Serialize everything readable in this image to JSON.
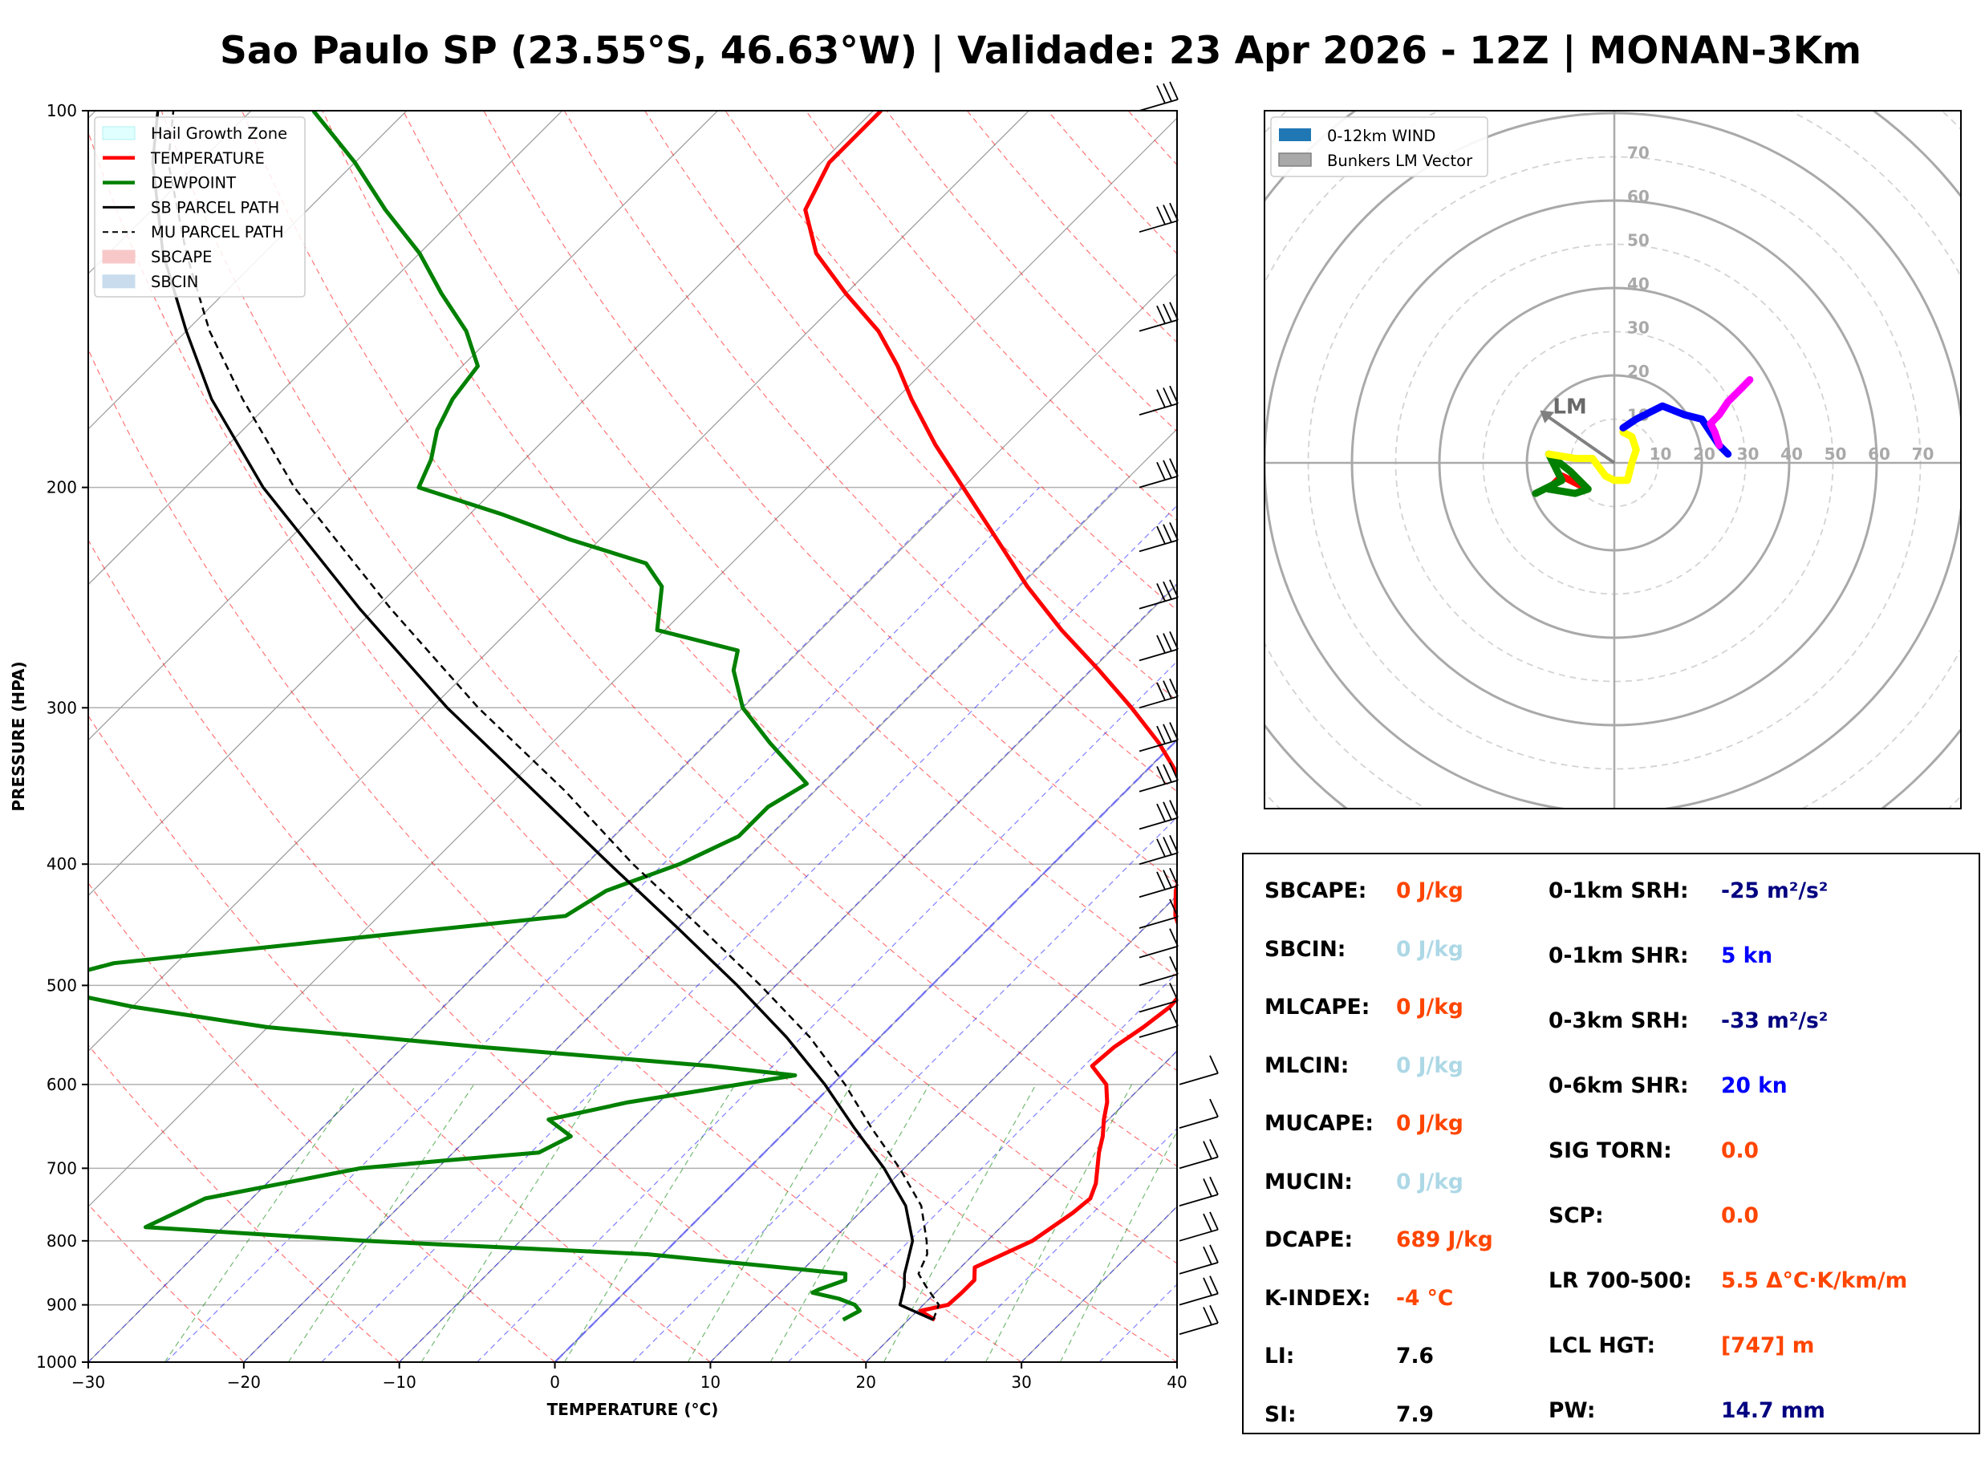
{
  "title": "Sao Paulo SP (23.55°S, 46.63°W) | Validade: 23 Apr 2026 - 12Z | MONAN-3Km",
  "skewt": {
    "xlabel": "TEMPERATURE (°C)",
    "ylabel": "PRESSURE (HPA)",
    "x_ticks": [
      "−30",
      "−20",
      "−10",
      "0",
      "10",
      "20",
      "30",
      "40"
    ],
    "y_ticks": [
      "100",
      "200",
      "300",
      "400",
      "500",
      "600",
      "700",
      "800",
      "900",
      "1000"
    ],
    "legend": [
      "Hail Growth Zone",
      "TEMPERATURE",
      "DEWPOINT",
      "SB PARCEL PATH",
      "MU PARCEL PATH",
      "SBCAPE",
      "SBCIN"
    ]
  },
  "hodograph": {
    "legend": [
      "0-12km WIND",
      "Bunkers LM Vector"
    ],
    "ring_labels": [
      "10",
      "20",
      "30",
      "40",
      "50",
      "60",
      "70"
    ],
    "lm_label": "LM"
  },
  "params_left": [
    {
      "label": "SBCAPE:",
      "value": "0 J/kg",
      "color": "#ff4500"
    },
    {
      "label": "SBCIN:",
      "value": "0 J/kg",
      "color": "#add8e6"
    },
    {
      "label": "MLCAPE:",
      "value": "0 J/kg",
      "color": "#ff4500"
    },
    {
      "label": "MLCIN:",
      "value": "0 J/kg",
      "color": "#add8e6"
    },
    {
      "label": "MUCAPE:",
      "value": "0 J/kg",
      "color": "#ff4500"
    },
    {
      "label": "MUCIN:",
      "value": "0 J/kg",
      "color": "#add8e6"
    },
    {
      "label": "DCAPE:",
      "value": "689 J/kg",
      "color": "#ff4500"
    },
    {
      "label": "K-INDEX:",
      "value": "-4 °C",
      "color": "#ff4500"
    },
    {
      "label": "LI:",
      "value": "7.6",
      "color": "#000000"
    },
    {
      "label": "SI:",
      "value": "7.9",
      "color": "#000000"
    }
  ],
  "params_right": [
    {
      "label": "0-1km SRH:",
      "value": "-25 m²/s²",
      "color": "#000080"
    },
    {
      "label": "0-1km SHR:",
      "value": "5 kn",
      "color": "#0000ff"
    },
    {
      "label": "0-3km SRH:",
      "value": "-33 m²/s²",
      "color": "#000080"
    },
    {
      "label": "0-6km SHR:",
      "value": "20 kn",
      "color": "#0000ff"
    },
    {
      "label": "SIG TORN:",
      "value": "0.0",
      "color": "#ff4500"
    },
    {
      "label": "SCP:",
      "value": "0.0",
      "color": "#ff4500"
    },
    {
      "label": "LR 700-500:",
      "value": "5.5 Δ°C·K/km/m",
      "color": "#ff4500"
    },
    {
      "label": "LCL HGT:",
      "value": "[747] m",
      "color": "#ff4500"
    },
    {
      "label": "PW:",
      "value": "14.7 mm",
      "color": "#000080"
    }
  ],
  "chart_data": [
    {
      "type": "line",
      "subtype": "skew-t log-p",
      "xlabel": "TEMPERATURE (°C)",
      "ylabel": "PRESSURE (HPA)",
      "xlim": [
        -30,
        40
      ],
      "ylim": [
        1000,
        100
      ],
      "y_scale": "log",
      "grid": true,
      "legend_position": "top-left",
      "colors": {
        "temperature": "#ff0000",
        "dewpoint": "#008000",
        "sb_parcel": "#000000",
        "mu_parcel": "#000000",
        "hail_zone": "#e0ffff"
      },
      "series": [
        {
          "name": "TEMPERATURE",
          "points": [
            [
              925,
              21.7
            ],
            [
              910,
              20.2
            ],
            [
              900,
              21.6
            ],
            [
              880,
              21.7
            ],
            [
              860,
              21.7
            ],
            [
              840,
              20.9
            ],
            [
              800,
              22.9
            ],
            [
              760,
              23.7
            ],
            [
              740,
              23.9
            ],
            [
              720,
              23.3
            ],
            [
              680,
              21.5
            ],
            [
              660,
              20.7
            ],
            [
              640,
              19.7
            ],
            [
              620,
              18.8
            ],
            [
              600,
              17.6
            ],
            [
              580,
              15.5
            ],
            [
              560,
              15.7
            ],
            [
              540,
              16.3
            ],
            [
              520,
              16.7
            ],
            [
              500,
              16.5
            ],
            [
              480,
              15.3
            ],
            [
              460,
              13.3
            ],
            [
              440,
              11.2
            ],
            [
              420,
              9.6
            ],
            [
              400,
              8.4
            ],
            [
              380,
              7.1
            ],
            [
              360,
              5.0
            ],
            [
              340,
              2.4
            ],
            [
              320,
              -1.0
            ],
            [
              300,
              -5.0
            ],
            [
              280,
              -9.5
            ],
            [
              260,
              -14.5
            ],
            [
              240,
              -19.5
            ],
            [
              220,
              -24.5
            ],
            [
              200,
              -30.0
            ],
            [
              185,
              -34.5
            ],
            [
              170,
              -39.0
            ],
            [
              160,
              -42.0
            ],
            [
              150,
              -45.5
            ],
            [
              140,
              -50.0
            ],
            [
              130,
              -54.5
            ],
            [
              120,
              -58.0
            ],
            [
              110,
              -59.5
            ],
            [
              100,
              -59.5
            ]
          ]
        },
        {
          "name": "DEWPOINT",
          "points": [
            [
              925,
              15.8
            ],
            [
              910,
              16.3
            ],
            [
              900,
              15.6
            ],
            [
              890,
              14.2
            ],
            [
              880,
              12.1
            ],
            [
              875,
              12.3
            ],
            [
              860,
              13.4
            ],
            [
              850,
              13.0
            ],
            [
              820,
              -1.0
            ],
            [
              800,
              -20.0
            ],
            [
              780,
              -35.0
            ],
            [
              760,
              -34.0
            ],
            [
              740,
              -33.0
            ],
            [
              700,
              -25.0
            ],
            [
              690,
              -20.0
            ],
            [
              680,
              -14.5
            ],
            [
              660,
              -13.5
            ],
            [
              640,
              -16.0
            ],
            [
              620,
              -12.0
            ],
            [
              600,
              -6.0
            ],
            [
              590,
              -3.0
            ],
            [
              580,
              -9.0
            ],
            [
              560,
              -25.0
            ],
            [
              540,
              -40.0
            ],
            [
              520,
              -50.0
            ],
            [
              500,
              -58.0
            ],
            [
              480,
              -54.0
            ],
            [
              440,
              -28.0
            ],
            [
              420,
              -27.0
            ],
            [
              400,
              -24.0
            ],
            [
              380,
              -22.0
            ],
            [
              360,
              -22.0
            ],
            [
              345,
              -21.0
            ],
            [
              320,
              -26.0
            ],
            [
              300,
              -30.0
            ],
            [
              280,
              -33.0
            ],
            [
              270,
              -34.0
            ],
            [
              260,
              -40.5
            ],
            [
              240,
              -43.0
            ],
            [
              230,
              -45.5
            ],
            [
              220,
              -52.0
            ],
            [
              210,
              -58.0
            ],
            [
              200,
              -65.0
            ],
            [
              190,
              -66.0
            ],
            [
              180,
              -67.5
            ],
            [
              170,
              -68.5
            ],
            [
              160,
              -69.0
            ],
            [
              150,
              -72.0
            ],
            [
              140,
              -76.0
            ],
            [
              130,
              -80.0
            ],
            [
              120,
              -85.0
            ],
            [
              110,
              -90.0
            ],
            [
              100,
              -96.0
            ]
          ]
        },
        {
          "name": "SB PARCEL PATH",
          "points": [
            [
              925,
              21.6
            ],
            [
              900,
              18.5
            ],
            [
              870,
              17.6
            ],
            [
              850,
              16.8
            ],
            [
              800,
              15.2
            ],
            [
              750,
              12.5
            ],
            [
              700,
              8.7
            ],
            [
              650,
              4.2
            ],
            [
              600,
              -0.5
            ],
            [
              550,
              -6.0
            ],
            [
              500,
              -12.5
            ],
            [
              450,
              -20.0
            ],
            [
              400,
              -28.5
            ],
            [
              350,
              -38.0
            ],
            [
              300,
              -49.0
            ],
            [
              250,
              -61.0
            ],
            [
              200,
              -75.0
            ],
            [
              170,
              -84.0
            ],
            [
              150,
              -90.0
            ],
            [
              130,
              -96.5
            ],
            [
              110,
              -103.0
            ],
            [
              100,
              -106.0
            ]
          ]
        },
        {
          "name": "MU PARCEL PATH",
          "points": [
            [
              925,
              21.6
            ],
            [
              900,
              21.0
            ],
            [
              870,
              19.0
            ],
            [
              850,
              17.7
            ],
            [
              820,
              17.0
            ],
            [
              800,
              16.1
            ],
            [
              750,
              13.5
            ],
            [
              700,
              9.7
            ],
            [
              650,
              5.3
            ],
            [
              600,
              0.8
            ],
            [
              550,
              -4.5
            ],
            [
              500,
              -11.0
            ],
            [
              450,
              -18.5
            ],
            [
              400,
              -27.0
            ],
            [
              350,
              -36.0
            ],
            [
              300,
              -47.0
            ],
            [
              250,
              -59.0
            ],
            [
              200,
              -73.0
            ],
            [
              170,
              -82.0
            ],
            [
              150,
              -88.5
            ],
            [
              130,
              -95.0
            ],
            [
              110,
              -102.0
            ],
            [
              100,
              -105.0
            ]
          ]
        },
        {
          "name": "Hail Growth Zone",
          "pressure_range": [
            380,
            580
          ]
        }
      ]
    },
    {
      "type": "scatter",
      "subtype": "hodograph",
      "xlim": [
        -80,
        80
      ],
      "ylim": [
        -80,
        80
      ],
      "grid": true,
      "legend_position": "top-left",
      "series": [
        {
          "name": "0-12km WIND",
          "segments": [
            {
              "color": "#ff0000",
              "points": [
                [
                  -8,
                  -5
                ],
                [
                  -12,
                  -3
                ],
                [
                  -15,
                  -6
                ]
              ]
            },
            {
              "color": "#008000",
              "points": [
                [
                  -15,
                  -6
                ],
                [
                  -9,
                  -7
                ],
                [
                  -6,
                  -6
                ],
                [
                  -10,
                  -2
                ],
                [
                  -15,
                  2
                ],
                [
                  -12,
                  -4
                ],
                [
                  -18,
                  -7
                ]
              ]
            },
            {
              "color": "#ffff00",
              "points": [
                [
                  -15,
                  2
                ],
                [
                  -9,
                  1
                ],
                [
                  -5,
                  1
                ],
                [
                  -2,
                  -3
                ],
                [
                  0,
                  -4
                ],
                [
                  3,
                  -4
                ],
                [
                  4,
                  0
                ],
                [
                  5,
                  3
                ],
                [
                  4,
                  6
                ],
                [
                  2,
                  7
                ]
              ]
            },
            {
              "color": "#0000ff",
              "points": [
                [
                  2,
                  8
                ],
                [
                  5,
                  10
                ],
                [
                  11,
                  13
                ],
                [
                  16,
                  11
                ],
                [
                  20,
                  10
                ],
                [
                  22,
                  7
                ],
                [
                  24,
                  4
                ],
                [
                  26,
                  2
                ]
              ]
            },
            {
              "color": "#ff00ff",
              "points": [
                [
                  24,
                  4
                ],
                [
                  23,
                  7
                ],
                [
                  22,
                  9
                ],
                [
                  24,
                  11
                ],
                [
                  26,
                  14
                ],
                [
                  29,
                  17
                ],
                [
                  31,
                  19
                ]
              ]
            }
          ]
        },
        {
          "name": "Bunkers LM Vector",
          "u": -17,
          "v": 12
        }
      ]
    }
  ]
}
